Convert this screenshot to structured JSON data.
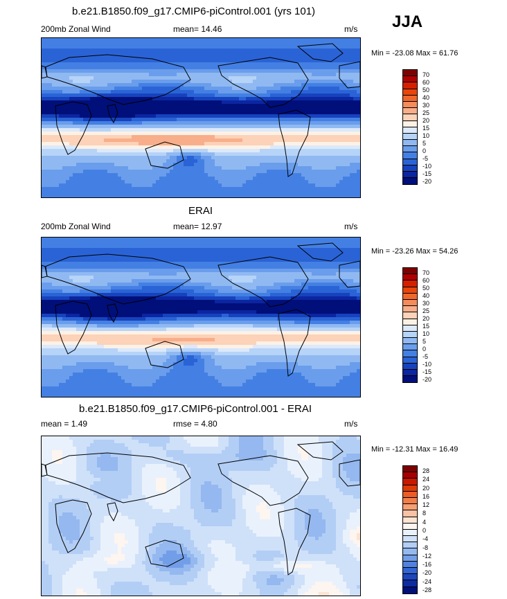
{
  "season": "JJA",
  "panels": [
    {
      "title": "b.e21.B1850.f09_g17.CMIP6-piControl.001 (yrs 101)",
      "left_label": "200mb Zonal Wind",
      "center_label": "mean=  14.46",
      "right_label": "m/s",
      "minmax": "Min = -23.08 Max =  61.76",
      "colors": [
        "#7f0000",
        "#b00000",
        "#d52000",
        "#e9460c",
        "#f0672b",
        "#f48c5c",
        "#f8ae8a",
        "#fcd2b8",
        "#fdf1e5",
        "#dbe9fb",
        "#b6d3f8",
        "#90b9f2",
        "#6a9deb",
        "#4480e3",
        "#2a63d6",
        "#1742bd",
        "#0c25a0",
        "#010f7a"
      ],
      "cb_labels": [
        "70",
        "60",
        "50",
        "40",
        "30",
        "25",
        "20",
        "15",
        "10",
        "5",
        "0",
        "-5",
        "-10",
        "-15",
        "-20"
      ]
    },
    {
      "title": "ERAI",
      "left_label": "200mb Zonal Wind",
      "center_label": "mean=  12.97",
      "right_label": "m/s",
      "minmax": "Min = -23.26 Max =  54.26",
      "colors": [
        "#7f0000",
        "#b00000",
        "#d52000",
        "#e9460c",
        "#f0672b",
        "#f48c5c",
        "#f8ae8a",
        "#fcd2b8",
        "#fdf1e5",
        "#dbe9fb",
        "#b6d3f8",
        "#90b9f2",
        "#6a9deb",
        "#4480e3",
        "#2a63d6",
        "#1742bd",
        "#0c25a0",
        "#010f7a"
      ],
      "cb_labels": [
        "70",
        "60",
        "50",
        "40",
        "30",
        "25",
        "20",
        "15",
        "10",
        "5",
        "0",
        "-5",
        "-10",
        "-15",
        "-20"
      ]
    },
    {
      "title": "b.e21.B1850.f09_g17.CMIP6-piControl.001 - ERAI",
      "left_label": "mean =   1.49",
      "center_label": "rmse =   4.80",
      "right_label": "m/s",
      "minmax": "Min = -12.31 Max =  16.49",
      "colors": [
        "#7f0000",
        "#a80000",
        "#c81800",
        "#de3a08",
        "#ec5c24",
        "#f27e48",
        "#f6a074",
        "#f9c2a4",
        "#fce3d2",
        "#fdf5ef",
        "#e9f1fc",
        "#cfe1f9",
        "#b3cef5",
        "#94b8ef",
        "#729ee8",
        "#5182df",
        "#3365d3",
        "#1e47bd",
        "#0d2aa1",
        "#010f7a"
      ],
      "cb_labels": [
        "28",
        "24",
        "20",
        "16",
        "12",
        "8",
        "4",
        "0",
        "-4",
        "-8",
        "-12",
        "-16",
        "-20",
        "-24",
        "-28"
      ]
    }
  ]
}
